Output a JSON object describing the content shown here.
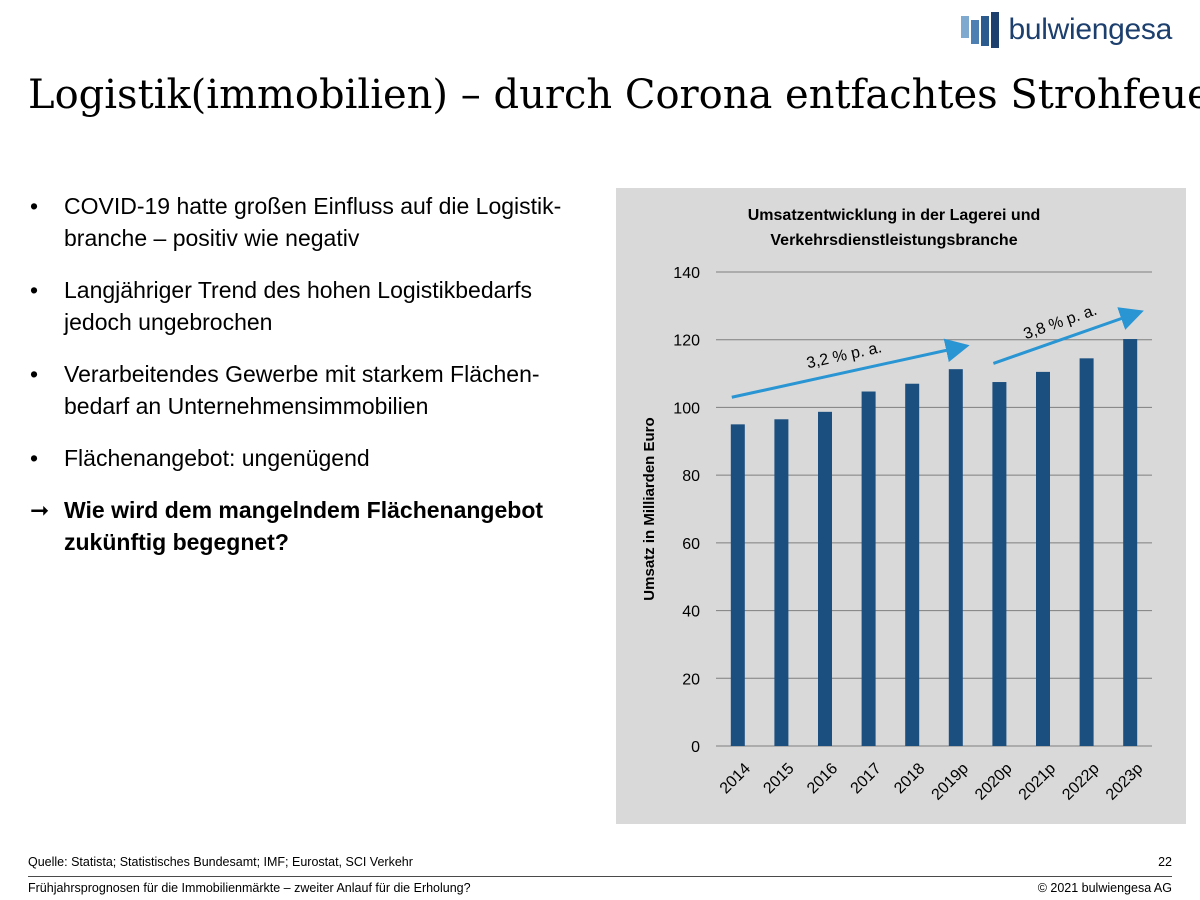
{
  "logo": {
    "text": "bulwiengesa",
    "color": "#1c3f6e"
  },
  "title": "Logistik(immobilien) – durch Corona entfachtes Strohfeuer?",
  "bullets": [
    {
      "marker": "•",
      "lines": [
        "COVID-19 hatte großen Einfluss auf die Logistik-",
        "branche – positiv wie negativ"
      ]
    },
    {
      "marker": "•",
      "lines": [
        "Langjähriger Trend des hohen Logistikbedarfs",
        "jedoch ungebrochen"
      ]
    },
    {
      "marker": "•",
      "lines": [
        "Verarbeitendes Gewerbe mit starkem Flächen-",
        "bedarf an Unternehmensimmobilien"
      ]
    },
    {
      "marker": "•",
      "lines": [
        "Flächenangebot: ungenügend"
      ]
    },
    {
      "marker": "➞",
      "lines": [
        "Wie wird dem mangelndem Flächenangebot",
        "zukünftig begegnet?"
      ]
    }
  ],
  "chart_data": {
    "type": "bar",
    "title": [
      "Umsatzentwicklung in der Lagerei und",
      "Verkehrsdienstleistungsbranche"
    ],
    "xlabel": "",
    "ylabel": "Umsatz in Milliarden Euro",
    "categories": [
      "2014",
      "2015",
      "2016",
      "2017",
      "2018",
      "2019p",
      "2020p",
      "2021p",
      "2022p",
      "2023p"
    ],
    "values": [
      95,
      96.5,
      98.7,
      104.7,
      107,
      111.3,
      107.5,
      110.5,
      114.5,
      120.2
    ],
    "ylim": [
      0,
      140
    ],
    "yticks": [
      0,
      20,
      40,
      60,
      80,
      100,
      120,
      140
    ],
    "grid": true,
    "bar_color": "#1b4f80",
    "arrow_color": "#2a95d3",
    "annotations": [
      {
        "text": "3,2 % p. a.",
        "from": {
          "x": "2014",
          "y": 103
        },
        "to": {
          "x": "2019p",
          "y": 118
        }
      },
      {
        "text": "3,8 % p. a.",
        "from": {
          "x": "2020p",
          "y": 113
        },
        "to": {
          "x": "2023p",
          "y": 128
        }
      }
    ]
  },
  "footer": {
    "source": "Quelle: Statista; Statistisches Bundesamt; IMF; Eurostat, SCI Verkehr",
    "page": "22",
    "title": "Frühjahrsprognosen für die Immobilienmärkte – zweiter Anlauf für die Erholung?",
    "copyright": "© 2021 bulwiengesa AG"
  }
}
